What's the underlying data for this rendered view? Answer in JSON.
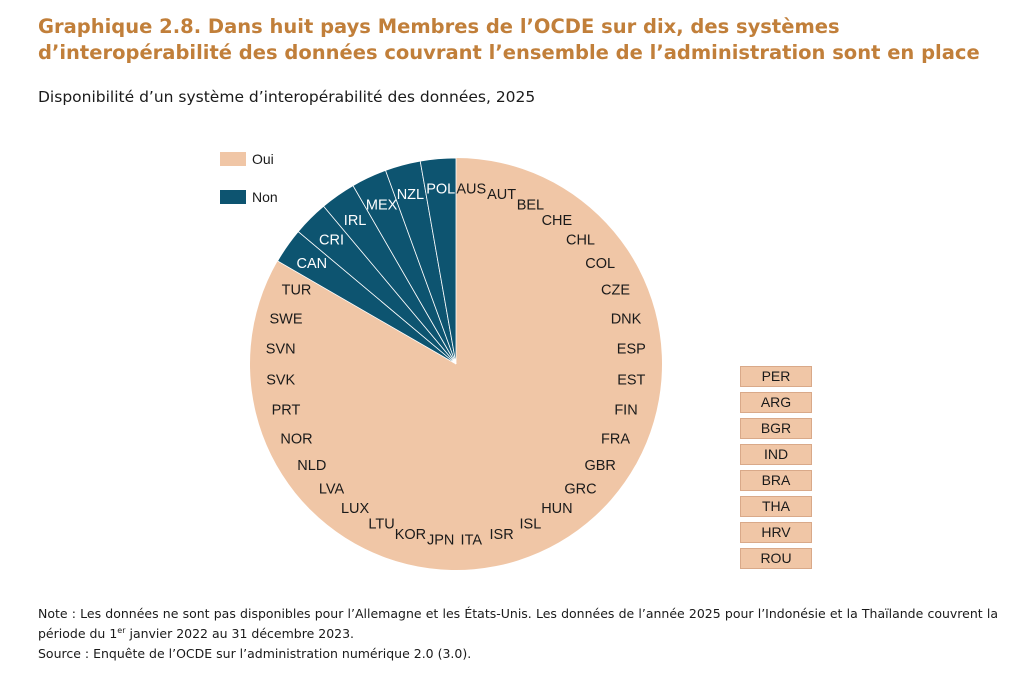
{
  "title": "Graphique 2.8. Dans huit pays Membres de l’OCDE sur dix, des systèmes d’interopérabilité des données couvrant l’ensemble de l’administration sont en place",
  "subtitle": "Disponibilité d’un système d’interopérabilité des données, 2025",
  "colors": {
    "oui": "#f0c6a6",
    "non": "#0d5470",
    "separator": "#ffffff"
  },
  "legend": [
    {
      "label": "Oui",
      "color": "#f0c6a6"
    },
    {
      "label": "Non",
      "color": "#0d5470"
    }
  ],
  "chart_data": {
    "type": "pie",
    "title": "Disponibilité d’un système d’interopérabilité des données, 2025",
    "series": [
      {
        "name": "Oui",
        "count": 30,
        "countries": [
          "AUS",
          "AUT",
          "BEL",
          "CHE",
          "CHL",
          "COL",
          "CZE",
          "DNK",
          "ESP",
          "EST",
          "FIN",
          "FRA",
          "GBR",
          "GRC",
          "HUN",
          "ISL",
          "ISR",
          "ITA",
          "JPN",
          "KOR",
          "LTU",
          "LUX",
          "LVA",
          "NLD",
          "NOR",
          "PRT",
          "SVK",
          "SVN",
          "SWE",
          "TUR"
        ]
      },
      {
        "name": "Non",
        "count": 6,
        "countries": [
          "CAN",
          "CRI",
          "IRL",
          "MEX",
          "NZL",
          "POL"
        ]
      }
    ],
    "legend_position": "top-left"
  },
  "side_list": [
    "PER",
    "ARG",
    "BGR",
    "IND",
    "BRA",
    "THA",
    "HRV",
    "ROU"
  ],
  "notes": {
    "note_a": "Note : Les données ne sont pas disponibles pour l’Allemagne et les États-Unis. Les données de l’année 2025 pour l’Indonésie et la Thaïlande couvrent la période du 1",
    "note_sup": "er",
    "note_b": " janvier 2022 au 31 décembre 2023.",
    "source": "Source : Enquête de l’OCDE sur l’administration numérique 2.0 (3.0)."
  }
}
